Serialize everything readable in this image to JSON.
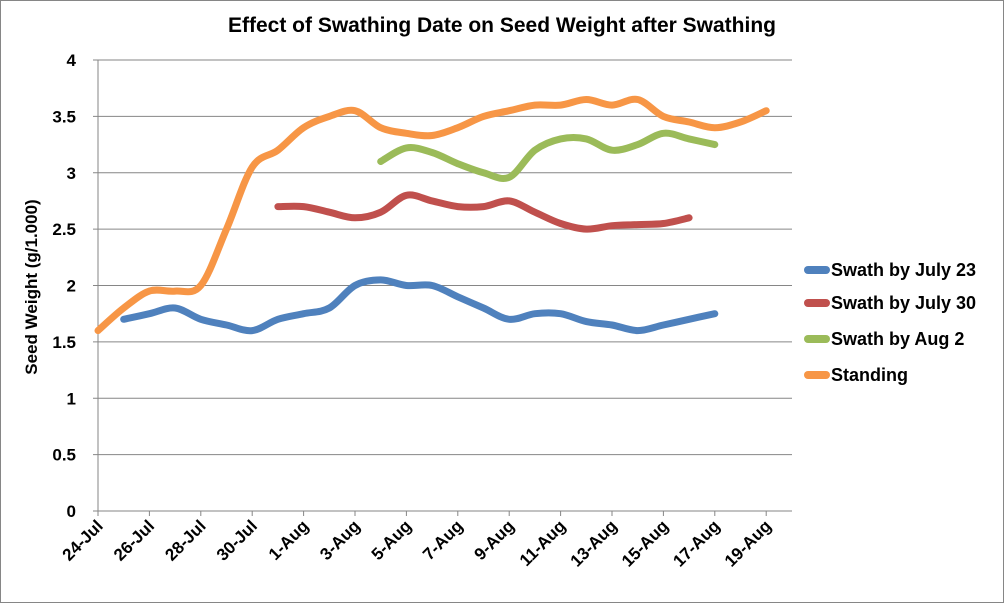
{
  "chart_data": {
    "type": "line",
    "title": "Effect of Swathing Date on Seed Weight after Swathing",
    "xlabel": "",
    "ylabel": "Seed Weight (g/1.000)",
    "ylim": [
      0,
      4
    ],
    "yticks": [
      "0",
      "0.5",
      "1",
      "1.5",
      "2",
      "2.5",
      "3",
      "3.5",
      "4"
    ],
    "x_tick_labels": [
      "24-Jul",
      "26-Jul",
      "28-Jul",
      "30-Jul",
      "1-Aug",
      "3-Aug",
      "5-Aug",
      "7-Aug",
      "9-Aug",
      "11-Aug",
      "13-Aug",
      "15-Aug",
      "17-Aug",
      "19-Aug"
    ],
    "x": [
      "24-Jul",
      "25-Jul",
      "26-Jul",
      "27-Jul",
      "28-Jul",
      "29-Jul",
      "30-Jul",
      "31-Jul",
      "1-Aug",
      "2-Aug",
      "3-Aug",
      "4-Aug",
      "5-Aug",
      "6-Aug",
      "7-Aug",
      "8-Aug",
      "9-Aug",
      "10-Aug",
      "11-Aug",
      "12-Aug",
      "13-Aug",
      "14-Aug",
      "15-Aug",
      "16-Aug",
      "17-Aug",
      "18-Aug",
      "19-Aug"
    ],
    "grid": "horizontal",
    "legend_position": "right",
    "series": [
      {
        "name": "Swath by July 23",
        "color": "#4F81BD",
        "values": [
          null,
          1.7,
          1.75,
          1.8,
          1.7,
          1.65,
          1.6,
          1.7,
          1.75,
          1.8,
          2.0,
          2.05,
          2.0,
          2.0,
          1.9,
          1.8,
          1.7,
          1.75,
          1.75,
          1.68,
          1.65,
          1.6,
          1.65,
          1.7,
          1.75,
          null,
          null
        ]
      },
      {
        "name": "Swath by July 30",
        "color": "#C0504D",
        "values": [
          null,
          null,
          null,
          null,
          null,
          null,
          null,
          2.7,
          2.7,
          2.65,
          2.6,
          2.65,
          2.8,
          2.75,
          2.7,
          2.7,
          2.75,
          2.65,
          2.55,
          2.5,
          2.53,
          2.54,
          2.55,
          2.6,
          null,
          null,
          null
        ]
      },
      {
        "name": "Swath by Aug 2",
        "color": "#9BBB59",
        "values": [
          null,
          null,
          null,
          null,
          null,
          null,
          null,
          null,
          null,
          null,
          null,
          3.1,
          3.22,
          3.18,
          3.08,
          3.0,
          2.96,
          3.2,
          3.3,
          3.3,
          3.2,
          3.25,
          3.35,
          3.3,
          3.25,
          null,
          null
        ]
      },
      {
        "name": "Standing",
        "color": "#F79646",
        "values": [
          1.6,
          1.8,
          1.95,
          1.95,
          2.0,
          2.5,
          3.05,
          3.2,
          3.4,
          3.5,
          3.55,
          3.4,
          3.35,
          3.33,
          3.4,
          3.5,
          3.55,
          3.6,
          3.6,
          3.65,
          3.6,
          3.65,
          3.5,
          3.45,
          3.4,
          3.45,
          3.55
        ]
      }
    ]
  }
}
